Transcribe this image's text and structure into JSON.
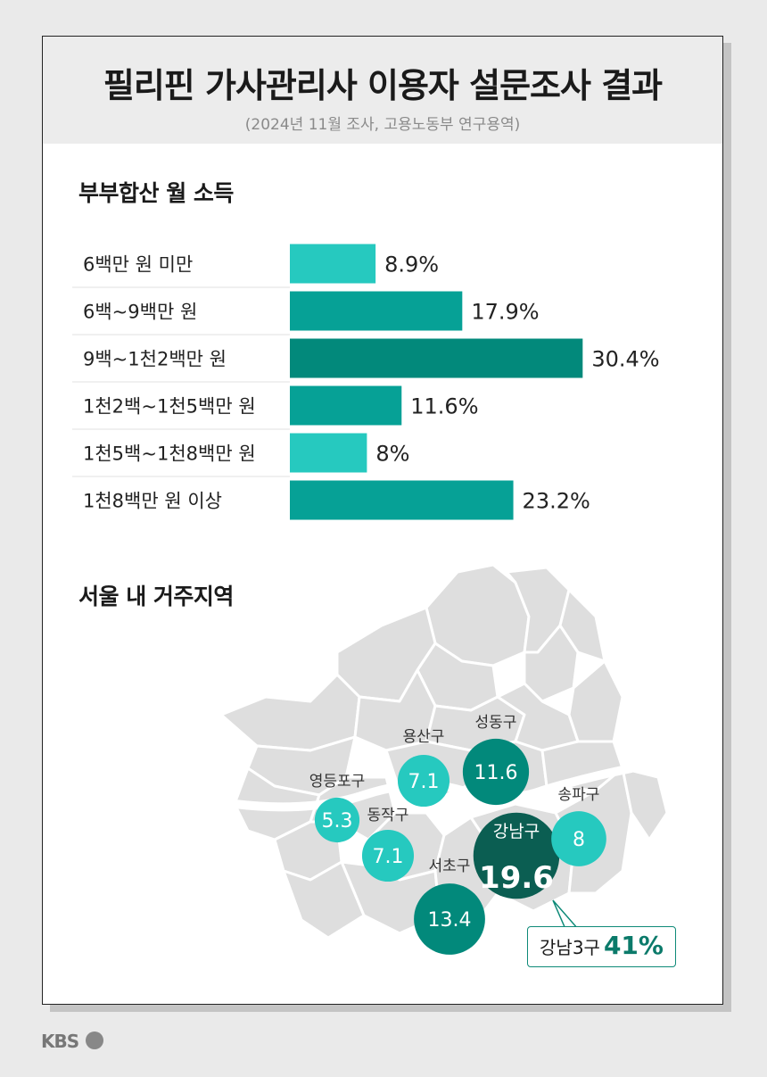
{
  "header": {
    "title": "필리핀 가사관리사 이용자 설문조사 결과",
    "subtitle": "(2024년 11월 조사, 고용노동부 연구용역)"
  },
  "income_section": {
    "title": "부부합산 월 소득"
  },
  "map_section": {
    "title": "서울 내 거주지역",
    "callout_label": "강남3구",
    "callout_value": "41%"
  },
  "footer": {
    "logo": "KBS"
  },
  "colors": {
    "light_teal": "#26c9bf",
    "mid_teal": "#06a196",
    "dark_teal": "#02897b",
    "bubble_darkest": "#0b5e52",
    "map_gray": "#dedede"
  },
  "chart_data": [
    {
      "type": "bar",
      "orientation": "horizontal",
      "title": "부부합산 월 소득",
      "categories": [
        "6백만 원 미만",
        "6백~9백만 원",
        "9백~1천2백만 원",
        "1천2백~1천5백만 원",
        "1천5백~1천8백만 원",
        "1천8백만 원 이상"
      ],
      "values": [
        8.9,
        17.9,
        30.4,
        11.6,
        8,
        23.2
      ],
      "value_labels": [
        "8.9%",
        "17.9%",
        "30.4%",
        "11.6%",
        "8%",
        "23.2%"
      ],
      "unit": "%"
    },
    {
      "type": "bubble-map",
      "title": "서울 내 거주지역",
      "districts": [
        {
          "name": "영등포구",
          "value": 5.3,
          "label": "5.3"
        },
        {
          "name": "용산구",
          "value": 7.1,
          "label": "7.1"
        },
        {
          "name": "동작구",
          "value": 7.1,
          "label": "7.1"
        },
        {
          "name": "송파구",
          "value": 8,
          "label": "8"
        },
        {
          "name": "성동구",
          "value": 11.6,
          "label": "11.6"
        },
        {
          "name": "서초구",
          "value": 13.4,
          "label": "13.4"
        },
        {
          "name": "강남구",
          "value": 19.6,
          "label": "19.6"
        }
      ]
    }
  ]
}
